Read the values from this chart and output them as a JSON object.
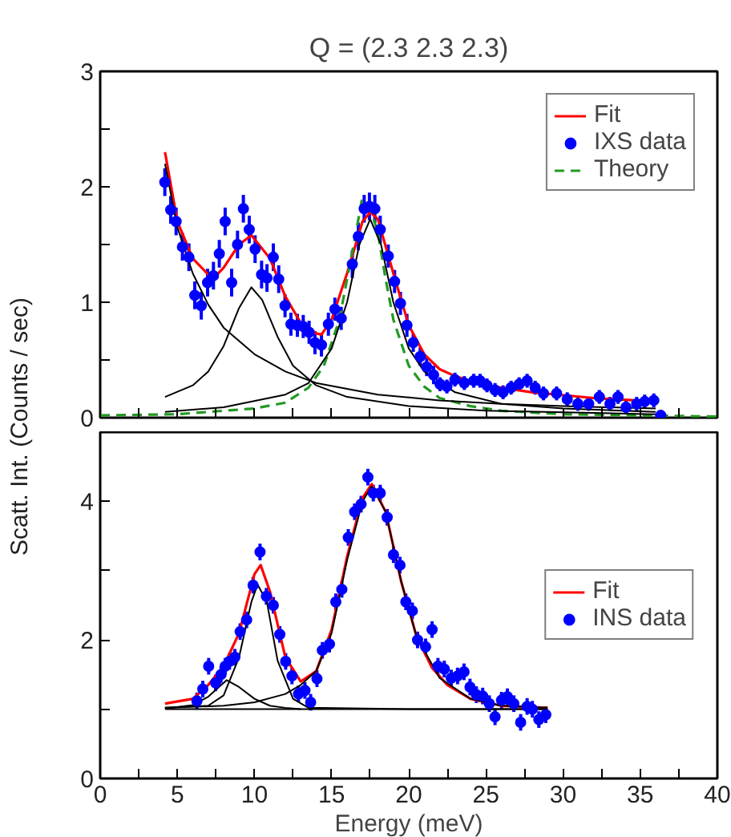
{
  "chart_data": [
    {
      "type": "line",
      "title": "Q = (2.3 2.3 2.3)",
      "ylabel": "Scatt. Int. (Counts / sec)",
      "xlim": [
        0,
        40
      ],
      "ylim": [
        0,
        3
      ],
      "xticks": [
        0,
        {
          "value": 2.5,
          "label": null
        },
        5,
        {
          "value": 7.5,
          "label": null
        },
        10,
        {
          "value": 12.5,
          "label": null
        },
        15,
        {
          "value": 17.5,
          "label": null
        },
        20,
        {
          "value": 22.5,
          "label": null
        },
        25,
        {
          "value": 27.5,
          "label": null
        },
        30,
        {
          "value": 32.5,
          "label": null
        },
        35,
        {
          "value": 37.5,
          "label": null
        },
        40
      ],
      "yticks": [
        0,
        {
          "value": 0.5,
          "label": null
        },
        1,
        {
          "value": 1.5,
          "label": null
        },
        2,
        {
          "value": 2.5,
          "label": null
        },
        3
      ],
      "tick_labels": "y",
      "grid": false,
      "legend": "top right",
      "series": [
        {
          "name": "Fit",
          "color": "#ff0000",
          "line_style": "solid",
          "x": [
            4.2,
            5,
            6,
            7,
            7.3,
            8,
            9,
            9.8,
            11,
            12,
            13,
            14,
            14.34,
            15,
            16,
            17,
            17.5,
            18,
            19,
            20,
            21,
            22,
            23,
            25,
            28,
            32,
            36
          ],
          "values": [
            2.3,
            1.7,
            1.38,
            1.24,
            1.2,
            1.3,
            1.5,
            1.58,
            1.38,
            1.05,
            0.82,
            0.73,
            0.72,
            0.85,
            1.25,
            1.7,
            1.78,
            1.72,
            1.25,
            0.8,
            0.55,
            0.42,
            0.36,
            0.28,
            0.22,
            0.17,
            0.14
          ]
        },
        {
          "name": "IXS data",
          "type": "scatter",
          "color": "#0000ff",
          "marker": "circle",
          "x": [
            4.19,
            4.57,
            4.92,
            5.33,
            5.75,
            6.13,
            6.55,
            6.96,
            7.34,
            7.72,
            8.1,
            8.52,
            8.9,
            9.28,
            9.66,
            10.04,
            10.46,
            10.81,
            11.22,
            11.57,
            11.98,
            12.36,
            12.78,
            13.16,
            13.54,
            13.92,
            14.34,
            14.79,
            15.21,
            15.62,
            16.34,
            16.73,
            17.11,
            17.45,
            17.8,
            18.15,
            18.67,
            19.08,
            19.46,
            19.88,
            20.29,
            20.74,
            21.16,
            21.61,
            22.03,
            22.47,
            22.99,
            23.6,
            24.21,
            24.62,
            25.07,
            25.59,
            26.11,
            26.63,
            27.15,
            27.67,
            28.19,
            28.73,
            29.58,
            30.27,
            30.96,
            31.66,
            32.35,
            33.04,
            33.56,
            34.08,
            34.77,
            35.29,
            35.88,
            36.33
          ],
          "values": [
            2.04,
            1.8,
            1.7,
            1.48,
            1.39,
            1.06,
            0.97,
            1.17,
            1.23,
            1.42,
            1.7,
            1.17,
            1.5,
            1.81,
            1.63,
            1.46,
            1.24,
            1.21,
            1.39,
            1.2,
            0.97,
            0.81,
            0.8,
            0.79,
            0.74,
            0.65,
            0.63,
            0.81,
            0.94,
            0.86,
            1.33,
            1.57,
            1.81,
            1.83,
            1.81,
            1.63,
            1.4,
            1.18,
            0.99,
            0.8,
            0.65,
            0.53,
            0.44,
            0.37,
            0.29,
            0.27,
            0.33,
            0.3,
            0.32,
            0.32,
            0.28,
            0.24,
            0.22,
            0.26,
            0.29,
            0.32,
            0.26,
            0.21,
            0.21,
            0.16,
            0.12,
            0.12,
            0.18,
            0.12,
            0.18,
            0.09,
            0.12,
            0.14,
            0.15,
            0.02
          ],
          "errors": [
            0.12,
            0.12,
            0.12,
            0.12,
            0.12,
            0.12,
            0.12,
            0.12,
            0.12,
            0.12,
            0.12,
            0.12,
            0.12,
            0.12,
            0.12,
            0.12,
            0.12,
            0.12,
            0.12,
            0.12,
            0.1,
            0.1,
            0.1,
            0.1,
            0.1,
            0.1,
            0.1,
            0.1,
            0.1,
            0.1,
            0.12,
            0.12,
            0.12,
            0.12,
            0.12,
            0.12,
            0.1,
            0.1,
            0.1,
            0.1,
            0.08,
            0.08,
            0.08,
            0.08,
            0.06,
            0.06,
            0.06,
            0.06,
            0.06,
            0.06,
            0.06,
            0.06,
            0.06,
            0.06,
            0.06,
            0.06,
            0.06,
            0.06,
            0.06,
            0.06,
            0.06,
            0.06,
            0.06,
            0.06,
            0.06,
            0.06,
            0.06,
            0.06,
            0.06,
            0.02
          ]
        },
        {
          "name": "Theory",
          "color": "#229922",
          "line_style": "dashed",
          "x": [
            0,
            5,
            10,
            12,
            13.5,
            14.5,
            15.5,
            16.5,
            16.95,
            17.5,
            18,
            18.5,
            19,
            20,
            21,
            22,
            24,
            26,
            30,
            35,
            40
          ],
          "values": [
            0.02,
            0.03,
            0.08,
            0.13,
            0.26,
            0.45,
            0.85,
            1.55,
            1.88,
            1.82,
            1.6,
            1.2,
            0.85,
            0.45,
            0.27,
            0.17,
            0.1,
            0.06,
            0.03,
            0.02,
            0.01
          ]
        },
        {
          "color": "#000000",
          "line_style": "solid",
          "x": [
            4.2,
            5,
            6,
            7,
            8,
            10,
            12,
            14,
            18,
            22,
            26,
            30,
            36
          ],
          "values": [
            2.2,
            1.65,
            1.25,
            0.98,
            0.78,
            0.55,
            0.4,
            0.3,
            0.2,
            0.15,
            0.12,
            0.1,
            0.08
          ]
        },
        {
          "color": "#000000",
          "line_style": "solid",
          "x": [
            4.2,
            6,
            7,
            8,
            9,
            9.8,
            10.5,
            11.5,
            12.5,
            14,
            16,
            20,
            25,
            36
          ],
          "values": [
            0.18,
            0.28,
            0.4,
            0.62,
            0.95,
            1.13,
            1.02,
            0.7,
            0.45,
            0.28,
            0.18,
            0.1,
            0.06,
            0.03
          ]
        },
        {
          "color": "#000000",
          "line_style": "solid",
          "x": [
            4.2,
            8,
            12,
            13.5,
            15,
            16,
            16.8,
            17.5,
            18.2,
            19,
            20,
            21,
            23,
            26,
            30,
            36
          ],
          "values": [
            0.05,
            0.09,
            0.2,
            0.3,
            0.6,
            1.0,
            1.5,
            1.72,
            1.5,
            1.0,
            0.6,
            0.4,
            0.22,
            0.12,
            0.08,
            0.05
          ]
        }
      ]
    },
    {
      "type": "line",
      "xlabel": "Energy (meV)",
      "xlim": [
        0,
        40
      ],
      "ylim": [
        0,
        5
      ],
      "xticks": [
        0,
        {
          "value": 2.5,
          "label": null
        },
        5,
        {
          "value": 7.5,
          "label": null
        },
        10,
        {
          "value": 12.5,
          "label": null
        },
        15,
        {
          "value": 17.5,
          "label": null
        },
        20,
        {
          "value": 22.5,
          "label": null
        },
        25,
        {
          "value": 27.5,
          "label": null
        },
        30,
        {
          "value": 32.5,
          "label": null
        },
        35,
        {
          "value": 37.5,
          "label": null
        },
        40
      ],
      "yticks": [
        0,
        {
          "value": 1,
          "label": null
        },
        2,
        {
          "value": 3,
          "label": null
        },
        4,
        {
          "value": 5,
          "label": null
        }
      ],
      "grid": false,
      "legend": "right",
      "series": [
        {
          "name": "Fit",
          "color": "#ff0000",
          "line_style": "solid",
          "x": [
            4.2,
            6,
            7,
            8,
            9,
            10,
            10.4,
            11,
            12,
            13,
            14,
            15,
            16,
            17,
            17.6,
            18.5,
            19.5,
            20.5,
            21.5,
            22.5,
            24,
            26,
            29
          ],
          "values": [
            1.08,
            1.15,
            1.35,
            1.62,
            2.1,
            2.95,
            3.08,
            2.7,
            1.75,
            1.4,
            1.55,
            2.15,
            3.2,
            4.05,
            4.25,
            3.85,
            2.85,
            2.05,
            1.6,
            1.35,
            1.15,
            1.05,
            1.02
          ]
        },
        {
          "name": "INS data",
          "type": "scatter",
          "color": "#0000ff",
          "marker": "circle",
          "x": [
            6.27,
            6.65,
            7.03,
            7.48,
            7.83,
            8.1,
            8.38,
            8.73,
            9.07,
            9.49,
            9.91,
            10.36,
            10.77,
            11.22,
            11.64,
            12.02,
            12.43,
            12.85,
            13.27,
            13.64,
            14.05,
            14.4,
            14.86,
            15.27,
            15.66,
            16.08,
            16.49,
            16.91,
            17.35,
            17.7,
            18.15,
            18.6,
            19.01,
            19.43,
            19.81,
            20.23,
            20.57,
            21.09,
            21.51,
            21.89,
            22.3,
            22.75,
            23.16,
            23.58,
            23.97,
            24.38,
            24.79,
            25.22,
            25.59,
            26.01,
            26.39,
            26.81,
            27.25,
            27.67,
            28.01,
            28.43,
            28.88
          ],
          "values": [
            1.12,
            1.29,
            1.62,
            1.38,
            1.5,
            1.62,
            1.69,
            1.75,
            2.12,
            2.29,
            2.79,
            3.27,
            2.63,
            2.5,
            2.08,
            1.69,
            1.48,
            1.22,
            1.27,
            1.1,
            1.44,
            1.85,
            1.94,
            2.55,
            2.73,
            3.48,
            3.85,
            3.96,
            4.35,
            4.12,
            4.12,
            3.77,
            3.23,
            3.08,
            2.55,
            2.42,
            2.0,
            1.9,
            2.15,
            1.62,
            1.58,
            1.45,
            1.48,
            1.54,
            1.32,
            1.21,
            1.19,
            1.08,
            0.89,
            1.13,
            1.18,
            1.08,
            0.81,
            1.04,
            1.0,
            0.85,
            0.92
          ],
          "errors": [
            0.12,
            0.12,
            0.12,
            0.12,
            0.12,
            0.12,
            0.12,
            0.12,
            0.12,
            0.12,
            0.12,
            0.12,
            0.12,
            0.12,
            0.12,
            0.12,
            0.12,
            0.12,
            0.12,
            0.12,
            0.12,
            0.12,
            0.12,
            0.12,
            0.12,
            0.12,
            0.12,
            0.12,
            0.12,
            0.12,
            0.12,
            0.12,
            0.12,
            0.12,
            0.12,
            0.12,
            0.12,
            0.12,
            0.12,
            0.12,
            0.12,
            0.12,
            0.12,
            0.12,
            0.12,
            0.12,
            0.12,
            0.12,
            0.12,
            0.12,
            0.12,
            0.12,
            0.12,
            0.12,
            0.12,
            0.12,
            0.12
          ]
        },
        {
          "color": "#000000",
          "line_style": "solid",
          "x": [
            4.2,
            29
          ],
          "values": [
            1.0,
            1.0
          ]
        },
        {
          "color": "#000000",
          "line_style": "solid",
          "x": [
            4.2,
            6,
            7,
            8.2,
            9,
            10,
            11,
            12,
            13
          ],
          "values": [
            1.01,
            1.06,
            1.18,
            1.42,
            1.32,
            1.15,
            1.05,
            1.02,
            1.0
          ]
        },
        {
          "color": "#000000",
          "line_style": "solid",
          "x": [
            4.2,
            7,
            8,
            9,
            9.8,
            10.2,
            10.8,
            11.5,
            12.5,
            13.5,
            20,
            29
          ],
          "values": [
            1.02,
            1.05,
            1.2,
            1.75,
            2.55,
            2.8,
            2.55,
            1.7,
            1.15,
            1.02,
            1.0,
            1.0
          ]
        },
        {
          "color": "#000000",
          "line_style": "solid",
          "x": [
            4.2,
            8,
            10,
            12,
            13,
            14,
            15,
            16,
            17,
            17.6,
            18.5,
            19.5,
            20.5,
            22,
            24,
            26,
            29
          ],
          "values": [
            1.02,
            1.05,
            1.1,
            1.22,
            1.35,
            1.55,
            2.1,
            3.15,
            4.0,
            4.22,
            3.85,
            2.85,
            2.05,
            1.45,
            1.15,
            1.05,
            1.02
          ]
        }
      ]
    }
  ]
}
